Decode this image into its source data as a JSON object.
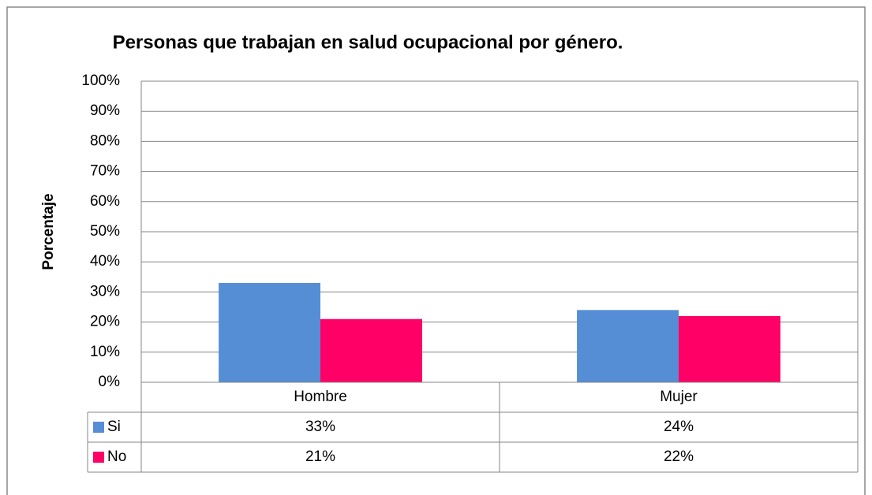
{
  "chart_data": {
    "type": "bar",
    "title": "Personas que trabajan en salud ocupacional por género.",
    "ylabel": "Porcentaje",
    "categories": [
      "Hombre",
      "Mujer"
    ],
    "series": [
      {
        "name": "Si",
        "color": "#558ed5",
        "values": [
          33,
          24
        ],
        "value_labels": [
          "33%",
          "24%"
        ]
      },
      {
        "name": "No",
        "color": "#ff0066",
        "values": [
          21,
          22
        ],
        "value_labels": [
          "21%",
          "22%"
        ]
      }
    ],
    "ylim": [
      0,
      100
    ],
    "yticks": [
      {
        "value": 0,
        "label": "0%"
      },
      {
        "value": 10,
        "label": "10%"
      },
      {
        "value": 20,
        "label": "20%"
      },
      {
        "value": 30,
        "label": "30%"
      },
      {
        "value": 40,
        "label": "40%"
      },
      {
        "value": 50,
        "label": "50%"
      },
      {
        "value": 60,
        "label": "60%"
      },
      {
        "value": 70,
        "label": "70%"
      },
      {
        "value": 80,
        "label": "80%"
      },
      {
        "value": 90,
        "label": "90%"
      },
      {
        "value": 100,
        "label": "100%"
      }
    ],
    "grid": true
  }
}
